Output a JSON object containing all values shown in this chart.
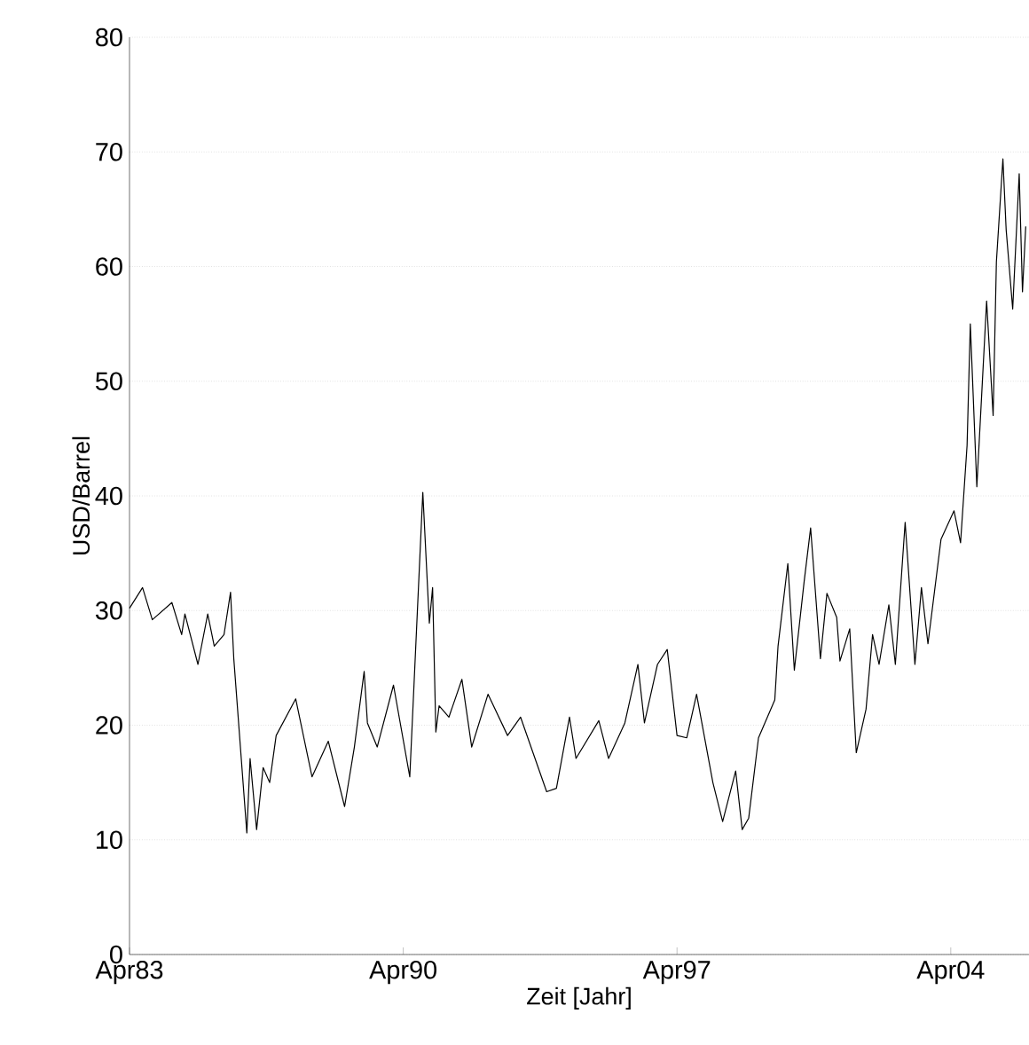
{
  "chart_data": {
    "type": "line",
    "xlabel": "Zeit [Jahr]",
    "ylabel": "USD/Barrel",
    "x": [
      "1983-04",
      "1983-08",
      "1983-11",
      "1984-05",
      "1984-08",
      "1984-09",
      "1985-01",
      "1985-04",
      "1985-06",
      "1985-09",
      "1985-11",
      "1985-12",
      "1986-04",
      "1986-05",
      "1986-07",
      "1986-09",
      "1986-11",
      "1987-01",
      "1987-07",
      "1987-12",
      "1988-05",
      "1988-10",
      "1989-01",
      "1989-04",
      "1989-05",
      "1989-08",
      "1990-01",
      "1990-06",
      "1990-10",
      "1990-12",
      "1991-01",
      "1991-02",
      "1991-03",
      "1991-06",
      "1991-10",
      "1992-01",
      "1992-06",
      "1992-12",
      "1993-04",
      "1993-12",
      "1994-03",
      "1994-07",
      "1994-09",
      "1995-04",
      "1995-07",
      "1995-12",
      "1996-04",
      "1996-06",
      "1996-10",
      "1997-01",
      "1997-04",
      "1997-07",
      "1997-10",
      "1998-03",
      "1998-06",
      "1998-10",
      "1998-12",
      "1999-02",
      "1999-05",
      "1999-10",
      "1999-11",
      "2000-02",
      "2000-04",
      "2000-07",
      "2000-09",
      "2000-12",
      "2001-02",
      "2001-05",
      "2001-06",
      "2001-09",
      "2001-11",
      "2002-02",
      "2002-04",
      "2002-06",
      "2002-09",
      "2002-11",
      "2003-02",
      "2003-05",
      "2003-07",
      "2003-09",
      "2004-01",
      "2004-05",
      "2004-07",
      "2004-09",
      "2004-10",
      "2004-12",
      "2005-03",
      "2005-05",
      "2005-06",
      "2005-08",
      "2005-09",
      "2005-11",
      "2006-01",
      "2006-02",
      "2006-03"
    ],
    "series": [
      {
        "color": "#000000",
        "values": [
          30.2,
          32.0,
          29.2,
          30.7,
          27.9,
          29.7,
          25.3,
          29.7,
          26.9,
          27.9,
          31.6,
          25.8,
          10.6,
          17.1,
          10.9,
          16.3,
          15.0,
          19.1,
          22.3,
          15.5,
          18.6,
          12.9,
          18.1,
          24.7,
          20.2,
          18.1,
          23.5,
          15.5,
          40.3,
          28.9,
          32.0,
          19.4,
          21.7,
          20.7,
          24.0,
          18.1,
          22.7,
          19.1,
          20.7,
          14.2,
          14.5,
          20.7,
          17.1,
          20.4,
          17.1,
          20.2,
          25.3,
          20.2,
          25.3,
          26.6,
          19.1,
          18.9,
          22.7,
          15.0,
          11.6,
          16.0,
          10.9,
          11.9,
          18.9,
          22.2,
          26.9,
          34.1,
          24.8,
          32.5,
          37.2,
          25.8,
          31.5,
          29.4,
          25.6,
          28.4,
          17.6,
          21.4,
          27.9,
          25.3,
          30.5,
          25.3,
          37.7,
          25.3,
          32.0,
          27.1,
          36.2,
          38.7,
          35.9,
          44.4,
          55.0,
          40.8,
          57.0,
          47.0,
          60.4,
          69.4,
          63.2,
          56.3,
          68.1,
          57.8,
          63.5
        ]
      }
    ],
    "xlim": [
      "1983-04",
      "2006-04"
    ],
    "xticks": [
      {
        "value": "1983-04",
        "label": "Apr83"
      },
      {
        "value": "1990-04",
        "label": "Apr90"
      },
      {
        "value": "1997-04",
        "label": "Apr97"
      },
      {
        "value": "2004-04",
        "label": "Apr04"
      }
    ],
    "ylim": [
      0,
      80
    ],
    "yticks": [
      0,
      10,
      20,
      30,
      40,
      50,
      60,
      70,
      80
    ],
    "grid": "y",
    "line_style": "solid"
  }
}
